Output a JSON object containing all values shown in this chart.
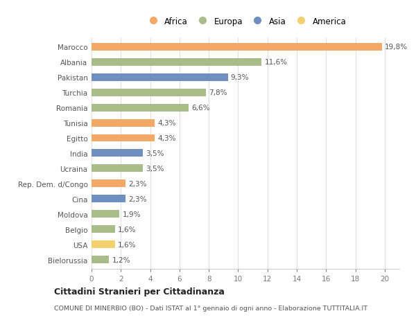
{
  "countries": [
    "Marocco",
    "Albania",
    "Pakistan",
    "Turchia",
    "Romania",
    "Tunisia",
    "Egitto",
    "India",
    "Ucraina",
    "Rep. Dem. d/Congo",
    "Cina",
    "Moldova",
    "Belgio",
    "USA",
    "Bielorussia"
  ],
  "values": [
    19.8,
    11.6,
    9.3,
    7.8,
    6.6,
    4.3,
    4.3,
    3.5,
    3.5,
    2.3,
    2.3,
    1.9,
    1.6,
    1.6,
    1.2
  ],
  "labels": [
    "19,8%",
    "11,6%",
    "9,3%",
    "7,8%",
    "6,6%",
    "4,3%",
    "4,3%",
    "3,5%",
    "3,5%",
    "2,3%",
    "2,3%",
    "1,9%",
    "1,6%",
    "1,6%",
    "1,2%"
  ],
  "continents": [
    "Africa",
    "Europa",
    "Asia",
    "Europa",
    "Europa",
    "Africa",
    "Africa",
    "Asia",
    "Europa",
    "Africa",
    "Asia",
    "Europa",
    "Europa",
    "America",
    "Europa"
  ],
  "colors": {
    "Africa": "#F4A868",
    "Europa": "#A8BC8A",
    "Asia": "#6E8FBF",
    "America": "#F5D06E"
  },
  "legend_order": [
    "Africa",
    "Europa",
    "Asia",
    "America"
  ],
  "xlim": [
    0,
    21
  ],
  "xticks": [
    0,
    2,
    4,
    6,
    8,
    10,
    12,
    14,
    16,
    18,
    20
  ],
  "title": "Cittadini Stranieri per Cittadinanza",
  "subtitle": "COMUNE DI MINERBIO (BO) - Dati ISTAT al 1° gennaio di ogni anno - Elaborazione TUTTITALIA.IT",
  "background_color": "#ffffff",
  "bar_height": 0.5,
  "gridcolor": "#e0e0e0"
}
